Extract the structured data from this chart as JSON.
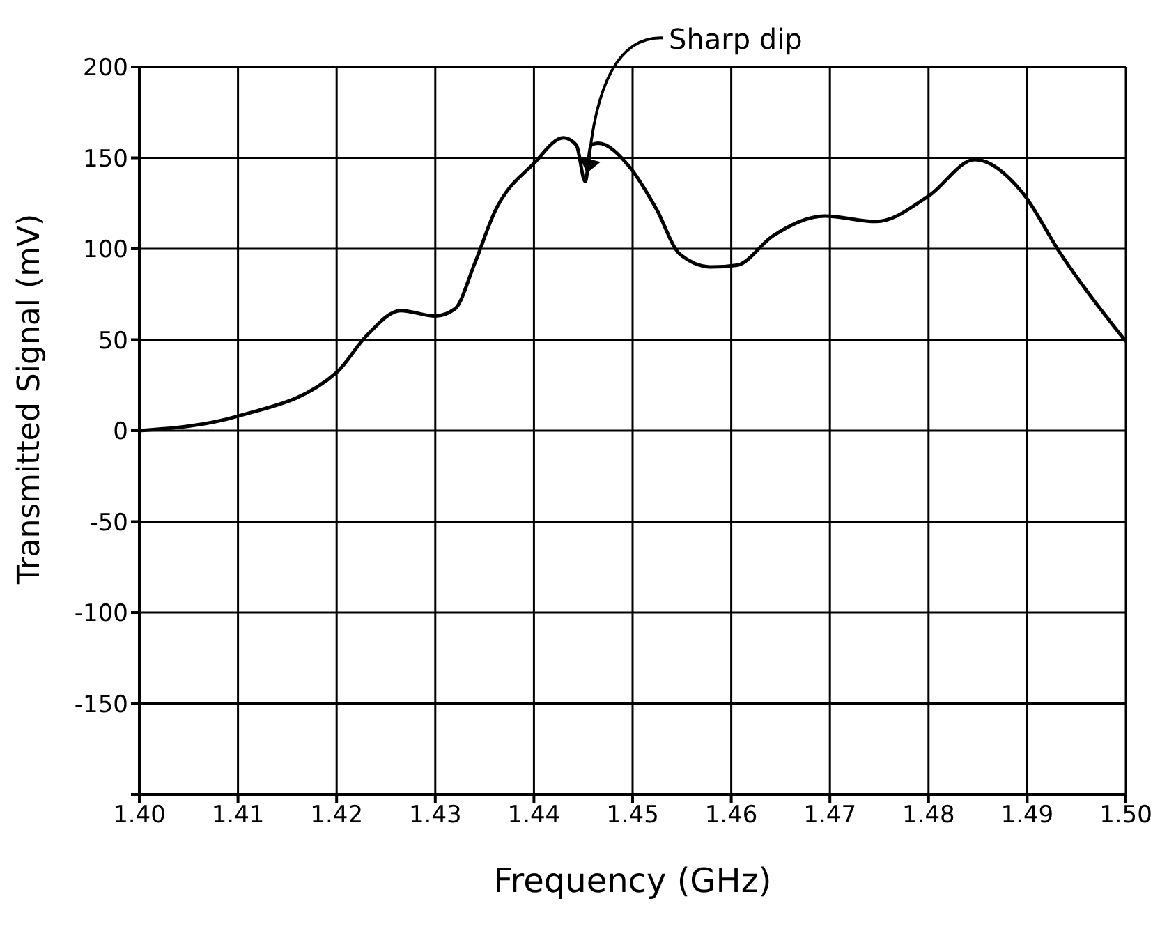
{
  "chart_data": {
    "type": "line",
    "xlabel": "Frequency (GHz)",
    "ylabel": "Transmitted Signal (mV)",
    "x": [
      1.4,
      1.41,
      1.42,
      1.423,
      1.4265,
      1.43,
      1.432,
      1.434,
      1.436,
      1.44,
      1.443,
      1.4443,
      1.4452,
      1.4458,
      1.4465,
      1.4497,
      1.4524,
      1.4548,
      1.458,
      1.4606,
      1.4642,
      1.4695,
      1.4747,
      1.48,
      1.4847,
      1.4895,
      1.4933,
      1.5
    ],
    "series": [
      {
        "color": "#000000",
        "values": [
          0,
          8,
          32,
          52,
          66,
          63,
          67,
          92,
          120,
          147,
          161,
          157,
          137,
          157,
          158,
          145,
          122,
          97,
          90,
          91,
          107,
          118,
          115,
          129,
          149,
          131,
          98,
          49
        ]
      }
    ],
    "xlim": [
      1.4,
      1.5
    ],
    "xticks": [
      {
        "value": 1.4,
        "label": "1.40"
      },
      1.41,
      1.42,
      1.43,
      1.44,
      1.45,
      1.46,
      1.47,
      1.48,
      1.49,
      {
        "value": 1.5,
        "label": "1.50"
      }
    ],
    "ylim": [
      -200,
      200
    ],
    "yticks": [
      {
        "value": -200,
        "label": null
      },
      -150,
      -100,
      -50,
      0,
      50,
      100,
      150,
      200
    ],
    "grid": true,
    "marker": "none",
    "line_style": "solid",
    "legend": false,
    "annotations": [
      {
        "text": "Sharp dip",
        "x": 1.4452,
        "y": 137
      }
    ]
  }
}
